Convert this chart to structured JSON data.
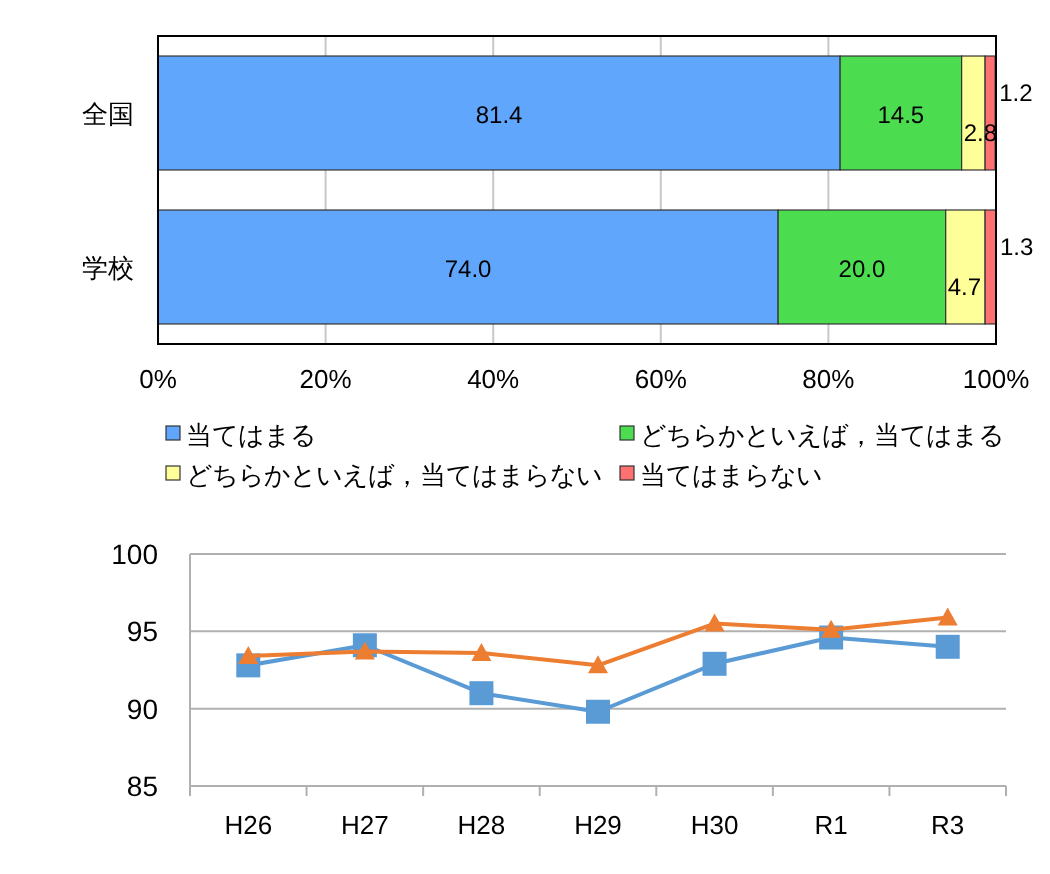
{
  "chart_data": [
    {
      "type": "bar",
      "orientation": "horizontal",
      "stacked": true,
      "categories": [
        "全国",
        "学校"
      ],
      "series": [
        {
          "name": "当てはまる",
          "color": "#60a6fc",
          "values": [
            81.4,
            74.0
          ],
          "value_labels": [
            "81.4",
            "74.0"
          ]
        },
        {
          "name": "どちらかといえば，当てはまる",
          "color": "#4cdc50",
          "values": [
            14.5,
            20.0
          ],
          "value_labels": [
            "14.5",
            "20.0"
          ]
        },
        {
          "name": "どちらかといえば，当てはまらない",
          "color": "#ffff99",
          "values": [
            2.8,
            4.7
          ],
          "value_labels": [
            "2.8",
            "4.7"
          ]
        },
        {
          "name": "当てはまらない",
          "color": "#ff7070",
          "values": [
            1.2,
            1.3
          ],
          "value_labels": [
            "1.2",
            "1.3"
          ]
        }
      ],
      "xlim": [
        0,
        100
      ],
      "xticks": [
        {
          "value": 0,
          "label": "0%"
        },
        {
          "value": 20,
          "label": "20%"
        },
        {
          "value": 40,
          "label": "40%"
        },
        {
          "value": 60,
          "label": "60%"
        },
        {
          "value": 80,
          "label": "80%"
        },
        {
          "value": 100,
          "label": "100%"
        }
      ],
      "grid": "x",
      "legend": "bottom"
    },
    {
      "type": "line",
      "categories": [
        "H26",
        "H27",
        "H28",
        "H29",
        "H30",
        "R1",
        "R3"
      ],
      "series": [
        {
          "color": "#5b9bd5",
          "marker": "square",
          "values": [
            92.8,
            94.1,
            91.0,
            89.8,
            92.9,
            94.6,
            94.0
          ]
        },
        {
          "color": "#ed7d31",
          "marker": "triangle",
          "values": [
            93.4,
            93.7,
            93.6,
            92.8,
            95.5,
            95.1,
            95.9
          ]
        }
      ],
      "ylim": [
        85,
        100
      ],
      "yticks": [
        85,
        90,
        95,
        100
      ],
      "grid": "y"
    }
  ]
}
